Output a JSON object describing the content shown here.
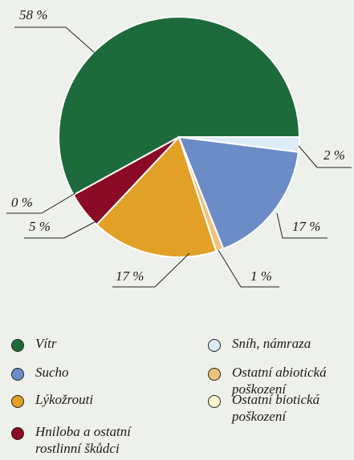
{
  "chart_data": {
    "type": "pie",
    "series": [
      {
        "name": "Vítr",
        "color": "#1d6b3a",
        "values": [
          58
        ],
        "value_labels": [
          "58 %"
        ]
      },
      {
        "name": "Sníh, námraza",
        "color": "#dcecf6",
        "values": [
          2
        ],
        "value_labels": [
          "2 %"
        ]
      },
      {
        "name": "Sucho",
        "color": "#6b8cc7",
        "values": [
          17
        ],
        "value_labels": [
          "17 %"
        ]
      },
      {
        "name": "Ostatní abiotická poškození",
        "color": "#efc27e",
        "values": [
          1
        ],
        "value_labels": [
          "1 %"
        ]
      },
      {
        "name": "Lýkožrouti",
        "color": "#e3a026",
        "values": [
          17
        ],
        "value_labels": [
          "17 %"
        ]
      },
      {
        "name": "Ostatní biotická poškození",
        "color": "#fdf7d0",
        "values": [
          0
        ],
        "value_labels": [
          "0 %"
        ]
      },
      {
        "name": "Hniloba a ostatní rostlinní škůdci",
        "color": "#8b0a24",
        "values": [
          5
        ],
        "value_labels": [
          "5 %"
        ]
      }
    ]
  }
}
